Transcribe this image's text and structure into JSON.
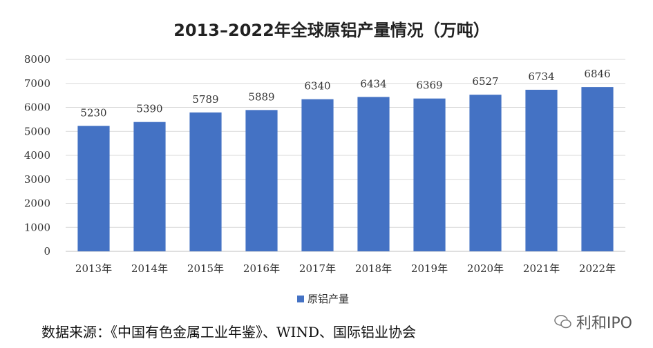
{
  "chart_data": {
    "type": "bar",
    "title": "2013–2022年全球原铝产量情况（万吨）",
    "categories": [
      "2013年",
      "2014年",
      "2015年",
      "2016年",
      "2017年",
      "2018年",
      "2019年",
      "2020年",
      "2021年",
      "2022年"
    ],
    "series": [
      {
        "name": "原铝产量",
        "values": [
          5230,
          5390,
          5789,
          5889,
          6340,
          6434,
          6369,
          6527,
          6734,
          6846
        ]
      }
    ],
    "ylim": [
      0,
      8000
    ],
    "yticks": [
      0,
      1000,
      2000,
      3000,
      4000,
      5000,
      6000,
      7000,
      8000
    ],
    "grid": true,
    "legend": "bottom",
    "bar_color": "#4472C4"
  },
  "source_text": "数据来源：《中国有色金属工业年鉴》、WIND、国际铝业协会",
  "watermark": "利和IPO"
}
